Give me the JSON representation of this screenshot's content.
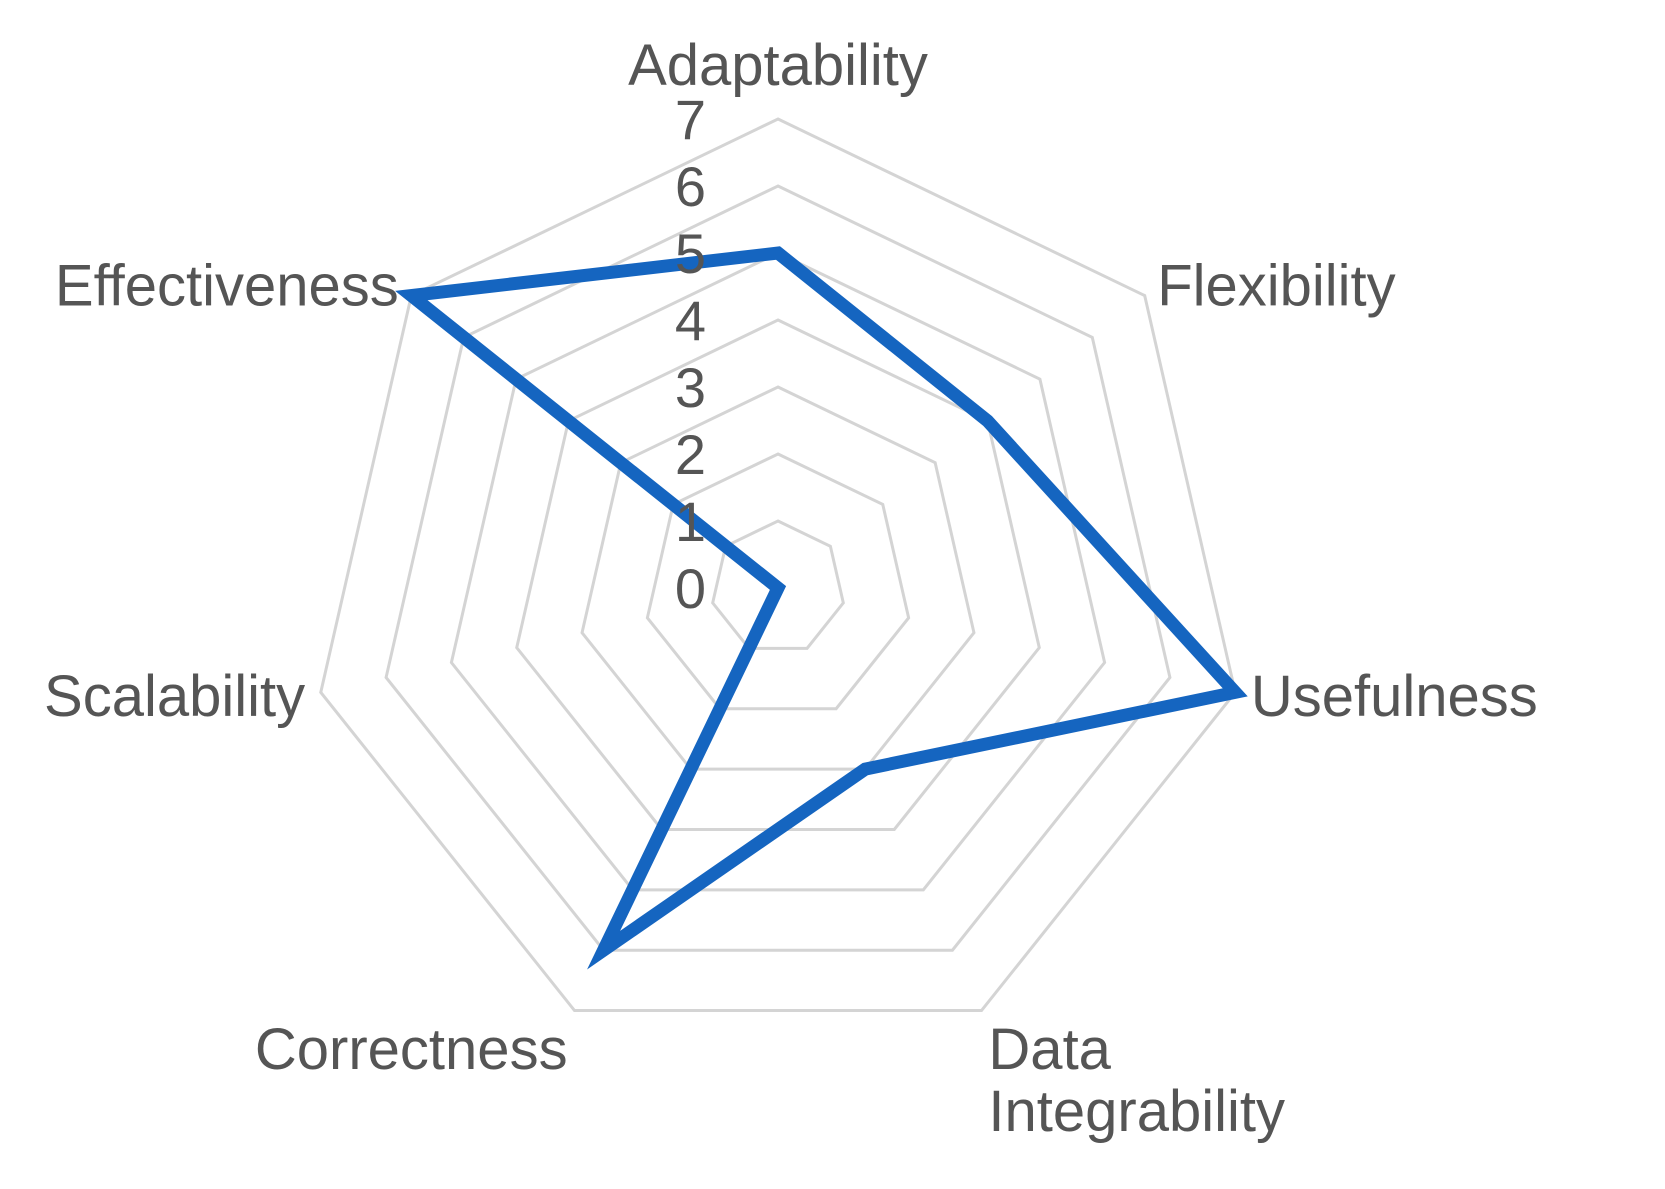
{
  "chart_data": {
    "type": "radar",
    "title": "",
    "axes": [
      "Adaptability",
      "Flexibility",
      "Usefulness",
      "Data Integrability",
      "Correctness",
      "Scalability",
      "Effectiveness"
    ],
    "axis_label_lines": [
      [
        "Adaptability"
      ],
      [
        "Flexibility"
      ],
      [
        "Usefulness"
      ],
      [
        "Data",
        "Integrability"
      ],
      [
        "Correctness"
      ],
      [
        "Scalability"
      ],
      [
        "Effectiveness"
      ]
    ],
    "scale": {
      "min": 0,
      "max": 7,
      "step": 1
    },
    "ticks": [
      "0",
      "1",
      "2",
      "3",
      "4",
      "5",
      "6",
      "7"
    ],
    "grid": true,
    "legend": "none",
    "series": [
      {
        "values": [
          5,
          4,
          7,
          3,
          6,
          0,
          7
        ],
        "color": "#1565c0"
      }
    ]
  }
}
